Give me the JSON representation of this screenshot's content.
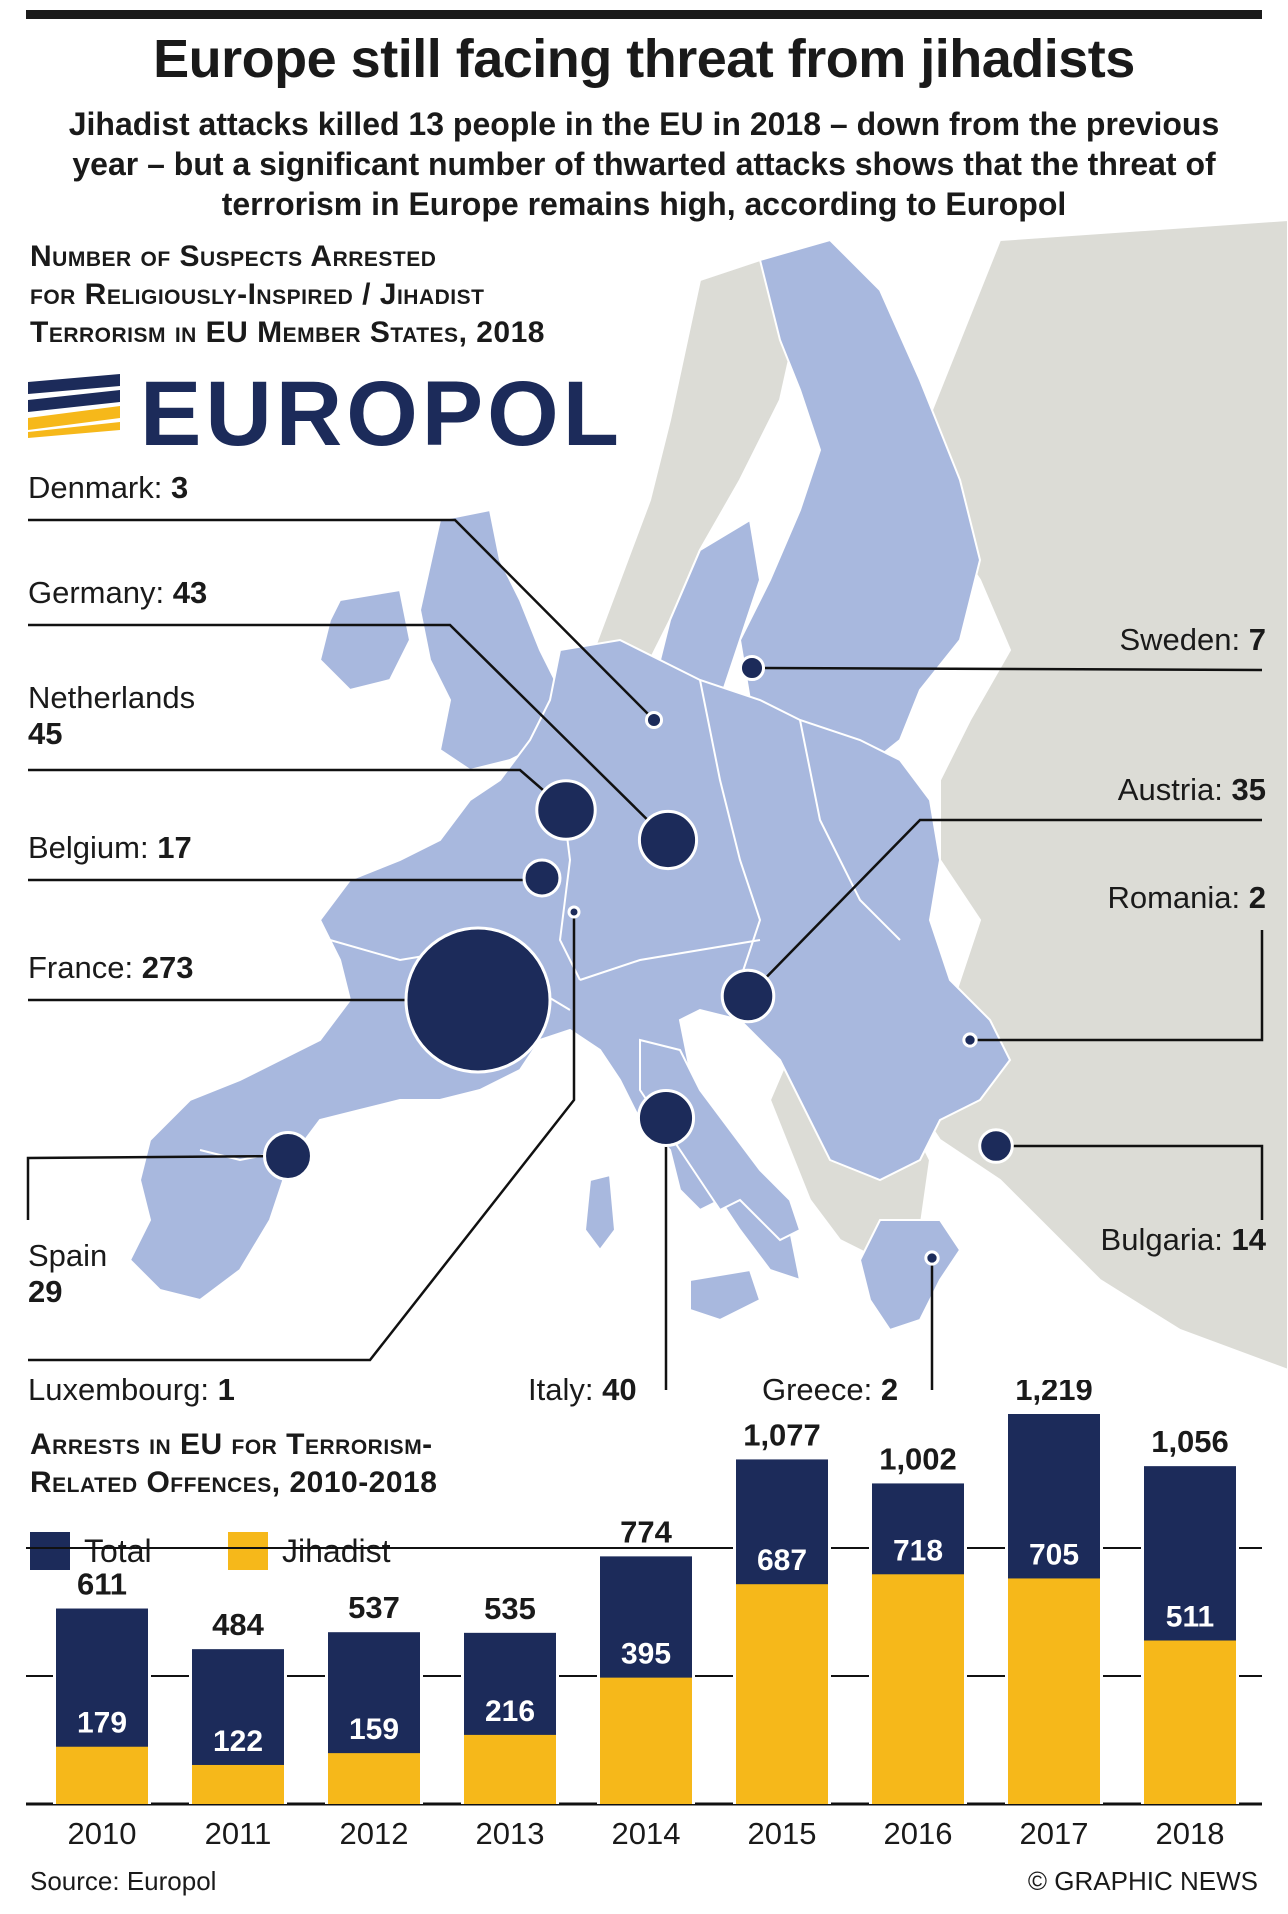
{
  "title": "Europe still facing threat from jihadists",
  "subtitle": "Jihadist attacks killed 13 people in the EU in 2018 – down from the previous year – but a significant number of thwarted attacks shows that the threat of terrorism in Europe remains high, according to Europol",
  "map_section": {
    "title_line1": "Number of Suspects Arrested",
    "title_line2": "for Religiously-Inspired / Jihadist",
    "title_line3": "Terrorism in EU Member States, 2018",
    "logo_text": "EUROPOL",
    "countries": [
      {
        "name": "Denmark",
        "value": "3"
      },
      {
        "name": "Germany",
        "value": "43"
      },
      {
        "name": "Netherlands",
        "value": "45"
      },
      {
        "name": "Belgium",
        "value": "17"
      },
      {
        "name": "France",
        "value": "273"
      },
      {
        "name": "Spain",
        "value": "29"
      },
      {
        "name": "Luxembourg",
        "value": "1"
      },
      {
        "name": "Italy",
        "value": "40"
      },
      {
        "name": "Greece",
        "value": "2"
      },
      {
        "name": "Sweden",
        "value": "7"
      },
      {
        "name": "Austria",
        "value": "35"
      },
      {
        "name": "Romania",
        "value": "2"
      },
      {
        "name": "Bulgaria",
        "value": "14"
      }
    ]
  },
  "bar_section": {
    "title_line1": "Arrests in EU for Terrorism-",
    "title_line2": "Related Offences, 2010-2018",
    "legend_total": "Total",
    "legend_jihadist": "Jihadist"
  },
  "colors": {
    "navy": "#1c2b5a",
    "yellow": "#f6b81a",
    "eu_fill": "#a8b8de",
    "land_fill": "#dcdcd6"
  },
  "chart_data": [
    {
      "type": "bubble-map",
      "title": "Number of Suspects Arrested for Religiously-Inspired / Jihadist Terrorism in EU Member States, 2018",
      "categories": [
        "Denmark",
        "Germany",
        "Netherlands",
        "Belgium",
        "France",
        "Spain",
        "Luxembourg",
        "Italy",
        "Greece",
        "Sweden",
        "Austria",
        "Romania",
        "Bulgaria"
      ],
      "values": [
        3,
        43,
        45,
        17,
        273,
        29,
        1,
        40,
        2,
        7,
        35,
        2,
        14
      ]
    },
    {
      "type": "bar",
      "title": "Arrests in EU for Terrorism-Related Offences, 2010-2018",
      "categories": [
        "2010",
        "2011",
        "2012",
        "2013",
        "2014",
        "2015",
        "2016",
        "2017",
        "2018"
      ],
      "series": [
        {
          "name": "Total",
          "values": [
            611,
            484,
            537,
            535,
            774,
            1077,
            1002,
            1219,
            1056
          ]
        },
        {
          "name": "Jihadist",
          "values": [
            179,
            122,
            159,
            216,
            395,
            687,
            718,
            705,
            511
          ]
        }
      ],
      "total_labels": [
        "611",
        "484",
        "537",
        "535",
        "774",
        "1,077",
        "1,002",
        "1,219",
        "1,056"
      ],
      "ylim": [
        0,
        1219
      ],
      "grid": true,
      "legend": "top-left"
    }
  ],
  "footer": {
    "source": "Source: Europol",
    "credit": "© GRAPHIC NEWS"
  }
}
